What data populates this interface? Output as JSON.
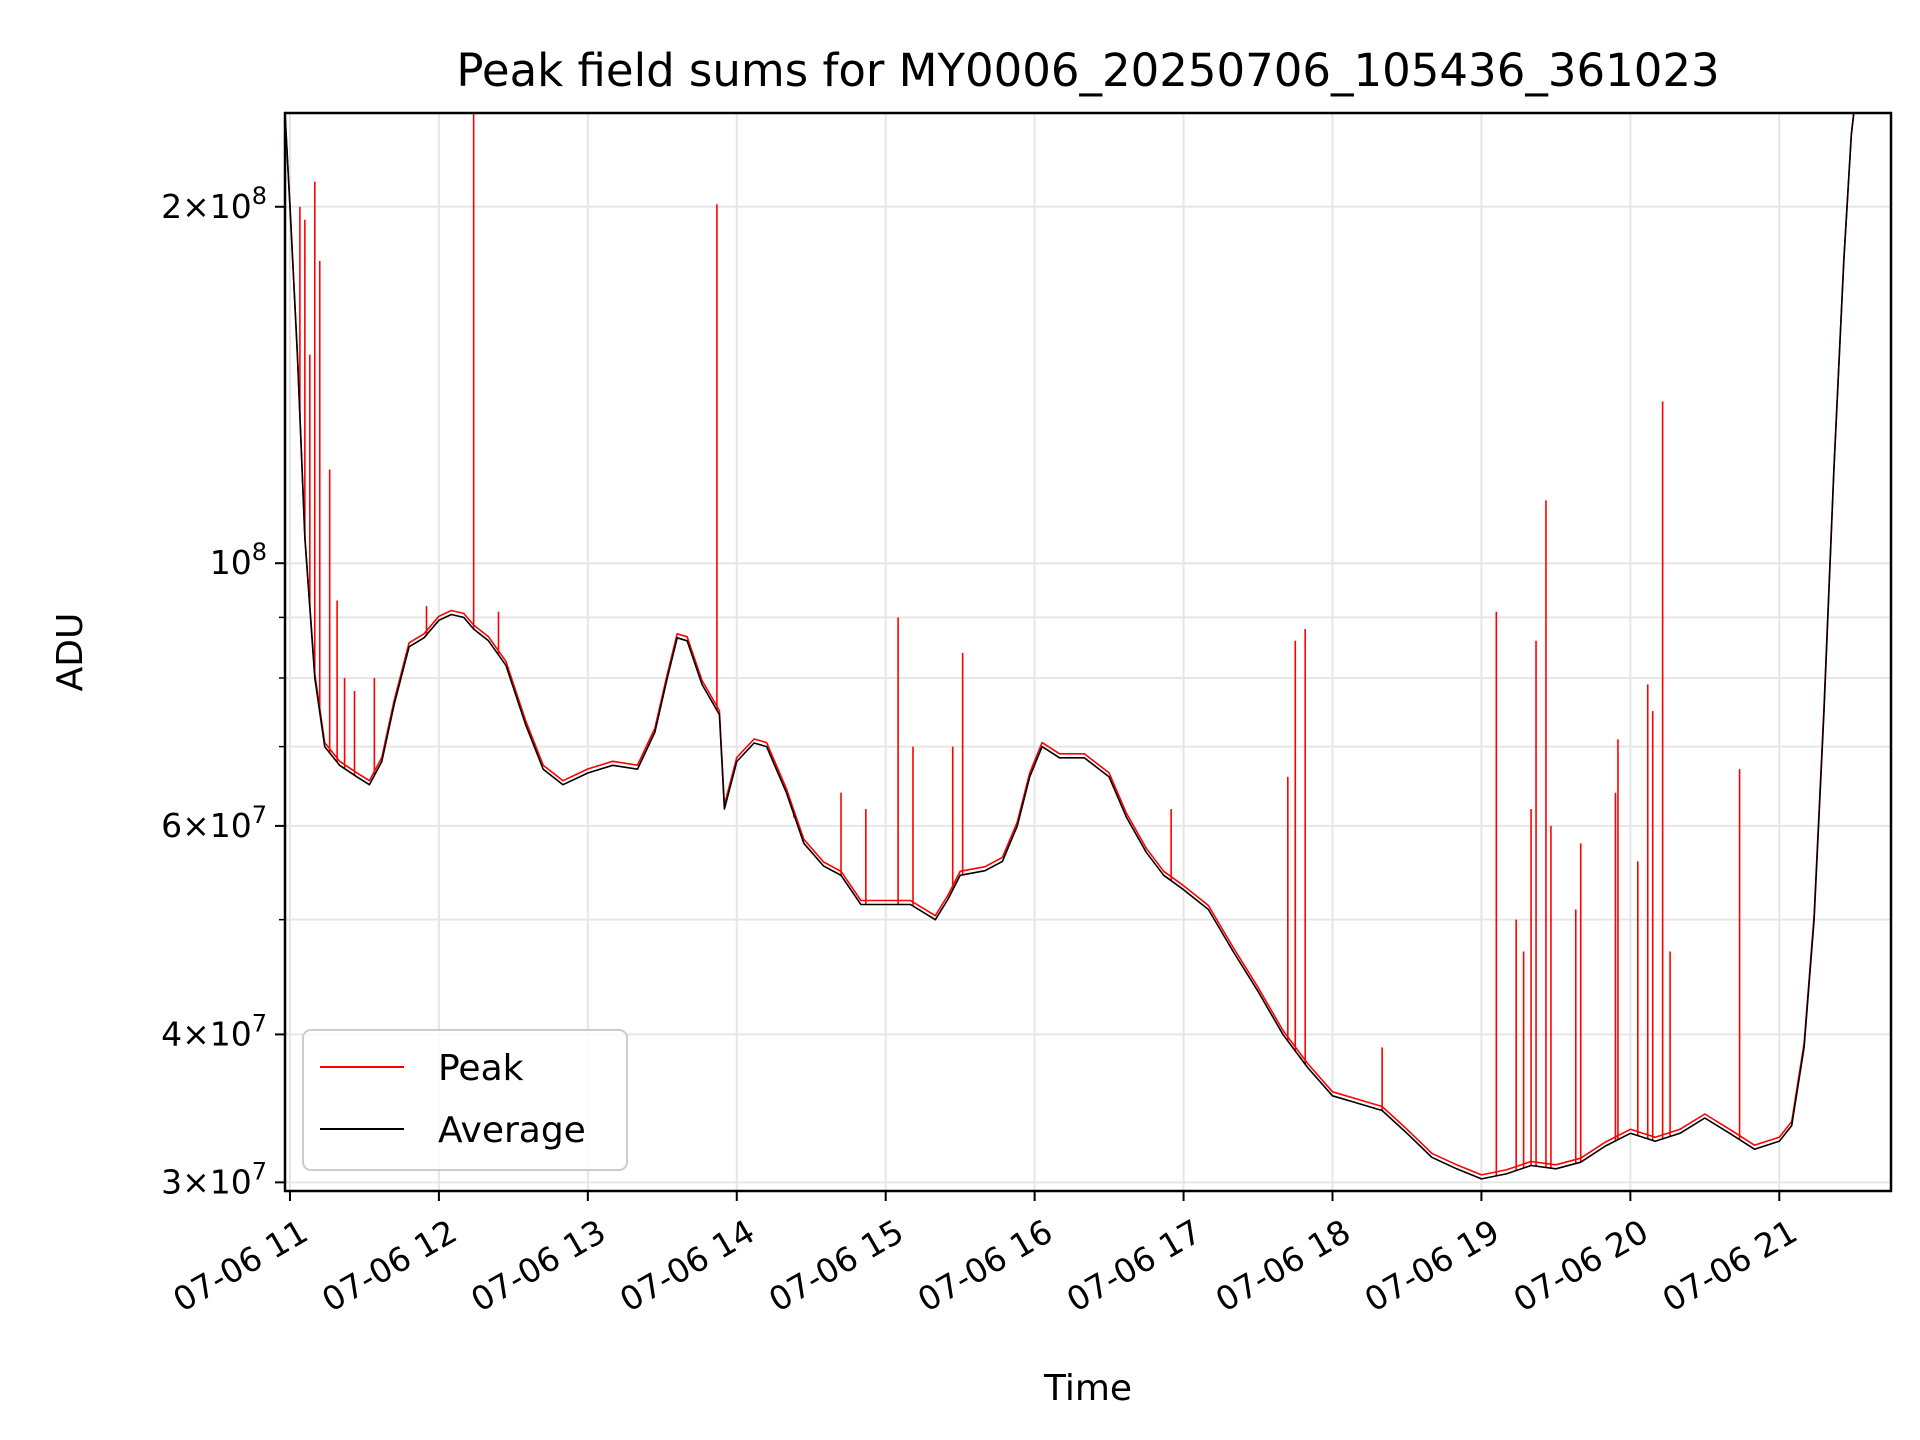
{
  "chart_data": {
    "type": "line",
    "title": "Peak field sums for MY0006_20250706_105436_361023",
    "xlabel": "Time",
    "ylabel": "ADU",
    "yscale": "log",
    "ylim": [
      29500000,
      240000000
    ],
    "xlim": [
      "07-06 10:58",
      "07-06 21:45"
    ],
    "grid": true,
    "legend_position": "lower-left",
    "x_ticks": [
      {
        "time": "07-06 11:00",
        "label": "07-06 11"
      },
      {
        "time": "07-06 12:00",
        "label": "07-06 12"
      },
      {
        "time": "07-06 13:00",
        "label": "07-06 13"
      },
      {
        "time": "07-06 14:00",
        "label": "07-06 14"
      },
      {
        "time": "07-06 15:00",
        "label": "07-06 15"
      },
      {
        "time": "07-06 16:00",
        "label": "07-06 16"
      },
      {
        "time": "07-06 17:00",
        "label": "07-06 17"
      },
      {
        "time": "07-06 18:00",
        "label": "07-06 18"
      },
      {
        "time": "07-06 19:00",
        "label": "07-06 19"
      },
      {
        "time": "07-06 20:00",
        "label": "07-06 20"
      },
      {
        "time": "07-06 21:00",
        "label": "07-06 21"
      }
    ],
    "y_major_ticks": [
      {
        "value": 30000000,
        "mant": "3",
        "exp": "7"
      },
      {
        "value": 40000000,
        "mant": "4",
        "exp": "7"
      },
      {
        "value": 60000000,
        "mant": "6",
        "exp": "7"
      },
      {
        "value": 100000000,
        "mant": "",
        "exp": "8"
      },
      {
        "value": 200000000,
        "mant": "2",
        "exp": "8"
      }
    ],
    "y_minor_ticks": [
      50000000,
      70000000,
      80000000,
      90000000
    ],
    "series": [
      {
        "name": "Average",
        "color": "#000000",
        "points": [
          [
            "07-06 10:58",
            240000000
          ],
          [
            "07-06 11:00",
            200000000
          ],
          [
            "07-06 11:03",
            150000000
          ],
          [
            "07-06 11:06",
            105000000
          ],
          [
            "07-06 11:10",
            80000000
          ],
          [
            "07-06 11:14",
            70000000
          ],
          [
            "07-06 11:20",
            67500000
          ],
          [
            "07-06 11:27",
            66000000
          ],
          [
            "07-06 11:32",
            65000000
          ],
          [
            "07-06 11:37",
            68000000
          ],
          [
            "07-06 11:42",
            76000000
          ],
          [
            "07-06 11:48",
            85000000
          ],
          [
            "07-06 11:54",
            86500000
          ],
          [
            "07-06 12:00",
            89500000
          ],
          [
            "07-06 12:05",
            90500000
          ],
          [
            "07-06 12:10",
            90000000
          ],
          [
            "07-06 12:14",
            88000000
          ],
          [
            "07-06 12:20",
            86000000
          ],
          [
            "07-06 12:27",
            82000000
          ],
          [
            "07-06 12:35",
            73000000
          ],
          [
            "07-06 12:42",
            67000000
          ],
          [
            "07-06 12:50",
            65000000
          ],
          [
            "07-06 13:00",
            66500000
          ],
          [
            "07-06 13:10",
            67500000
          ],
          [
            "07-06 13:20",
            67000000
          ],
          [
            "07-06 13:27",
            72000000
          ],
          [
            "07-06 13:32",
            80000000
          ],
          [
            "07-06 13:36",
            86500000
          ],
          [
            "07-06 13:40",
            86000000
          ],
          [
            "07-06 13:46",
            79000000
          ],
          [
            "07-06 13:53",
            74500000
          ],
          [
            "07-06 13:55",
            62000000
          ],
          [
            "07-06 14:00",
            68000000
          ],
          [
            "07-06 14:07",
            70500000
          ],
          [
            "07-06 14:12",
            70000000
          ],
          [
            "07-06 14:20",
            64000000
          ],
          [
            "07-06 14:27",
            58000000
          ],
          [
            "07-06 14:35",
            55500000
          ],
          [
            "07-06 14:42",
            54500000
          ],
          [
            "07-06 14:50",
            51500000
          ],
          [
            "07-06 15:00",
            51500000
          ],
          [
            "07-06 15:10",
            51500000
          ],
          [
            "07-06 15:20",
            50000000
          ],
          [
            "07-06 15:25",
            52000000
          ],
          [
            "07-06 15:30",
            54500000
          ],
          [
            "07-06 15:40",
            55000000
          ],
          [
            "07-06 15:47",
            56000000
          ],
          [
            "07-06 15:53",
            60000000
          ],
          [
            "07-06 15:58",
            66000000
          ],
          [
            "07-06 16:03",
            70000000
          ],
          [
            "07-06 16:10",
            68500000
          ],
          [
            "07-06 16:20",
            68500000
          ],
          [
            "07-06 16:30",
            66000000
          ],
          [
            "07-06 16:37",
            61000000
          ],
          [
            "07-06 16:45",
            57000000
          ],
          [
            "07-06 16:52",
            54500000
          ],
          [
            "07-06 17:00",
            53000000
          ],
          [
            "07-06 17:10",
            51000000
          ],
          [
            "07-06 17:20",
            47000000
          ],
          [
            "07-06 17:30",
            43500000
          ],
          [
            "07-06 17:40",
            40000000
          ],
          [
            "07-06 17:50",
            37500000
          ],
          [
            "07-06 18:00",
            35500000
          ],
          [
            "07-06 18:10",
            35000000
          ],
          [
            "07-06 18:20",
            34500000
          ],
          [
            "07-06 18:30",
            33000000
          ],
          [
            "07-06 18:40",
            31500000
          ],
          [
            "07-06 18:50",
            30800000
          ],
          [
            "07-06 19:00",
            30200000
          ],
          [
            "07-06 19:10",
            30500000
          ],
          [
            "07-06 19:20",
            31000000
          ],
          [
            "07-06 19:30",
            30800000
          ],
          [
            "07-06 19:40",
            31200000
          ],
          [
            "07-06 19:50",
            32200000
          ],
          [
            "07-06 20:00",
            33000000
          ],
          [
            "07-06 20:10",
            32500000
          ],
          [
            "07-06 20:20",
            33000000
          ],
          [
            "07-06 20:30",
            34000000
          ],
          [
            "07-06 20:40",
            33000000
          ],
          [
            "07-06 20:50",
            32000000
          ],
          [
            "07-06 21:00",
            32500000
          ],
          [
            "07-06 21:05",
            33500000
          ],
          [
            "07-06 21:10",
            39000000
          ],
          [
            "07-06 21:14",
            50000000
          ],
          [
            "07-06 21:18",
            75000000
          ],
          [
            "07-06 21:22",
            120000000
          ],
          [
            "07-06 21:26",
            180000000
          ],
          [
            "07-06 21:29",
            230000000
          ],
          [
            "07-06 21:30",
            240000000
          ]
        ]
      },
      {
        "name": "Peak",
        "color": "#ff0000",
        "spikes": [
          [
            "07-06 11:04",
            200000000
          ],
          [
            "07-06 11:06",
            195000000
          ],
          [
            "07-06 11:08",
            150000000
          ],
          [
            "07-06 11:10",
            210000000
          ],
          [
            "07-06 11:12",
            180000000
          ],
          [
            "07-06 11:16",
            120000000
          ],
          [
            "07-06 11:19",
            93000000
          ],
          [
            "07-06 11:22",
            80000000
          ],
          [
            "07-06 11:26",
            78000000
          ],
          [
            "07-06 11:34",
            80000000
          ],
          [
            "07-06 11:55",
            92000000
          ],
          [
            "07-06 12:14",
            240000000
          ],
          [
            "07-06 12:24",
            91000000
          ],
          [
            "07-06 13:52",
            201000000
          ],
          [
            "07-06 14:23",
            61000000
          ],
          [
            "07-06 14:42",
            64000000
          ],
          [
            "07-06 14:52",
            62000000
          ],
          [
            "07-06 15:05",
            90000000
          ],
          [
            "07-06 15:11",
            70000000
          ],
          [
            "07-06 15:27",
            70000000
          ],
          [
            "07-06 15:31",
            84000000
          ],
          [
            "07-06 16:55",
            62000000
          ],
          [
            "07-06 17:42",
            66000000
          ],
          [
            "07-06 17:45",
            86000000
          ],
          [
            "07-06 17:49",
            88000000
          ],
          [
            "07-06 18:20",
            39000000
          ],
          [
            "07-06 19:06",
            91000000
          ],
          [
            "07-06 19:14",
            50000000
          ],
          [
            "07-06 19:17",
            47000000
          ],
          [
            "07-06 19:20",
            62000000
          ],
          [
            "07-06 19:22",
            86000000
          ],
          [
            "07-06 19:26",
            113000000
          ],
          [
            "07-06 19:28",
            60000000
          ],
          [
            "07-06 19:38",
            51000000
          ],
          [
            "07-06 19:40",
            58000000
          ],
          [
            "07-06 19:54",
            64000000
          ],
          [
            "07-06 19:55",
            71000000
          ],
          [
            "07-06 20:03",
            56000000
          ],
          [
            "07-06 20:07",
            79000000
          ],
          [
            "07-06 20:09",
            75000000
          ],
          [
            "07-06 20:13",
            137000000
          ],
          [
            "07-06 20:16",
            47000000
          ],
          [
            "07-06 20:44",
            67000000
          ]
        ]
      }
    ]
  }
}
